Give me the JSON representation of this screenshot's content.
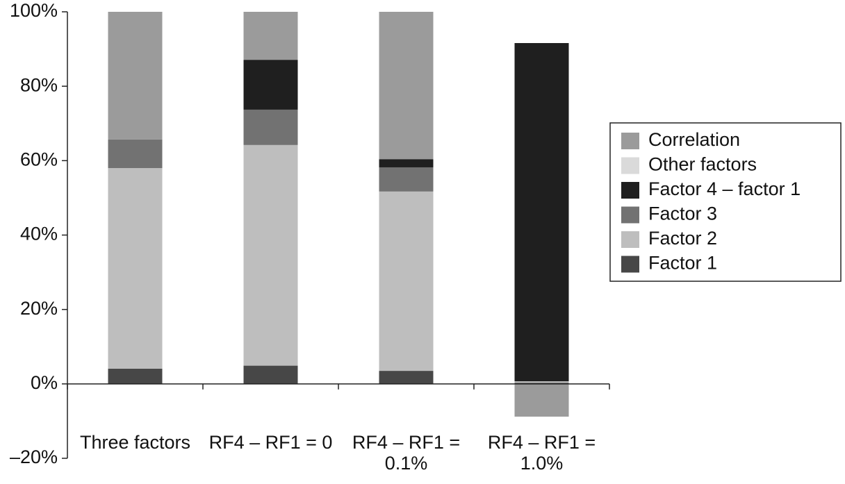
{
  "chart_data": {
    "type": "stacked_bar",
    "categories": [
      "Three factors",
      "RF4 – RF1 = 0",
      "RF4 – RF1 = 0.1%",
      "RF4 – RF1 = 1.0%"
    ],
    "series": [
      {
        "name": "Factor 1",
        "color": "#474747",
        "values": [
          4.1,
          4.9,
          3.5,
          0.3
        ]
      },
      {
        "name": "Factor 2",
        "color": "#bebebe",
        "values": [
          53.9,
          59.3,
          48.2,
          0.4
        ]
      },
      {
        "name": "Factor 3",
        "color": "#727272",
        "values": [
          7.7,
          9.5,
          6.5,
          0
        ]
      },
      {
        "name": "Factor 4 – factor 1",
        "color": "#1f1f1f",
        "values": [
          0,
          13.4,
          2.2,
          90.9
        ]
      },
      {
        "name": "Other factors",
        "color": "#dadada",
        "values": [
          0,
          0,
          0,
          0
        ]
      },
      {
        "name": "Correlation",
        "color": "#9b9b9b",
        "values": [
          34.3,
          12.9,
          39.6,
          -8.8
        ]
      }
    ],
    "ylim": [
      -20,
      100
    ],
    "yticks": [
      {
        "value": -20,
        "label": "–20%"
      },
      {
        "value": 0,
        "label": "0%"
      },
      {
        "value": 20,
        "label": "20%"
      },
      {
        "value": 40,
        "label": "40%"
      },
      {
        "value": 60,
        "label": "60%"
      },
      {
        "value": 80,
        "label": "80%"
      },
      {
        "value": 100,
        "label": "100%"
      }
    ],
    "legend": "right"
  }
}
